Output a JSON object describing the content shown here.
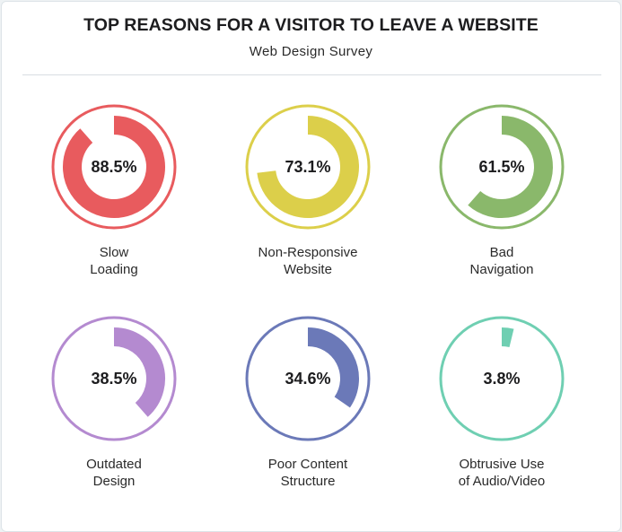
{
  "title": "TOP REASONS FOR A VISITOR TO LEAVE A WEBSITE",
  "subtitle": "Web Design Survey",
  "chart_data": {
    "type": "donut-grid",
    "title": "TOP REASONS FOR A VISITOR TO LEAVE A WEBSITE",
    "subtitle": "Web Design Survey",
    "unit": "%",
    "items": [
      {
        "label_lines": [
          "Slow",
          "Loading"
        ],
        "value": 88.5,
        "display": "88.5%",
        "color": "#e85b5e"
      },
      {
        "label_lines": [
          "Non-Responsive",
          "Website"
        ],
        "value": 73.1,
        "display": "73.1%",
        "color": "#dccf4a"
      },
      {
        "label_lines": [
          "Bad",
          "Navigation"
        ],
        "value": 61.5,
        "display": "61.5%",
        "color": "#8ab86b"
      },
      {
        "label_lines": [
          "Outdated",
          "Design"
        ],
        "value": 38.5,
        "display": "38.5%",
        "color": "#b48ad0"
      },
      {
        "label_lines": [
          "Poor Content",
          "Structure"
        ],
        "value": 34.6,
        "display": "34.6%",
        "color": "#6b79b8"
      },
      {
        "label_lines": [
          "Obtrusive Use",
          "of Audio/Video"
        ],
        "value": 3.8,
        "display": "3.8%",
        "color": "#6fcfb2"
      }
    ]
  }
}
